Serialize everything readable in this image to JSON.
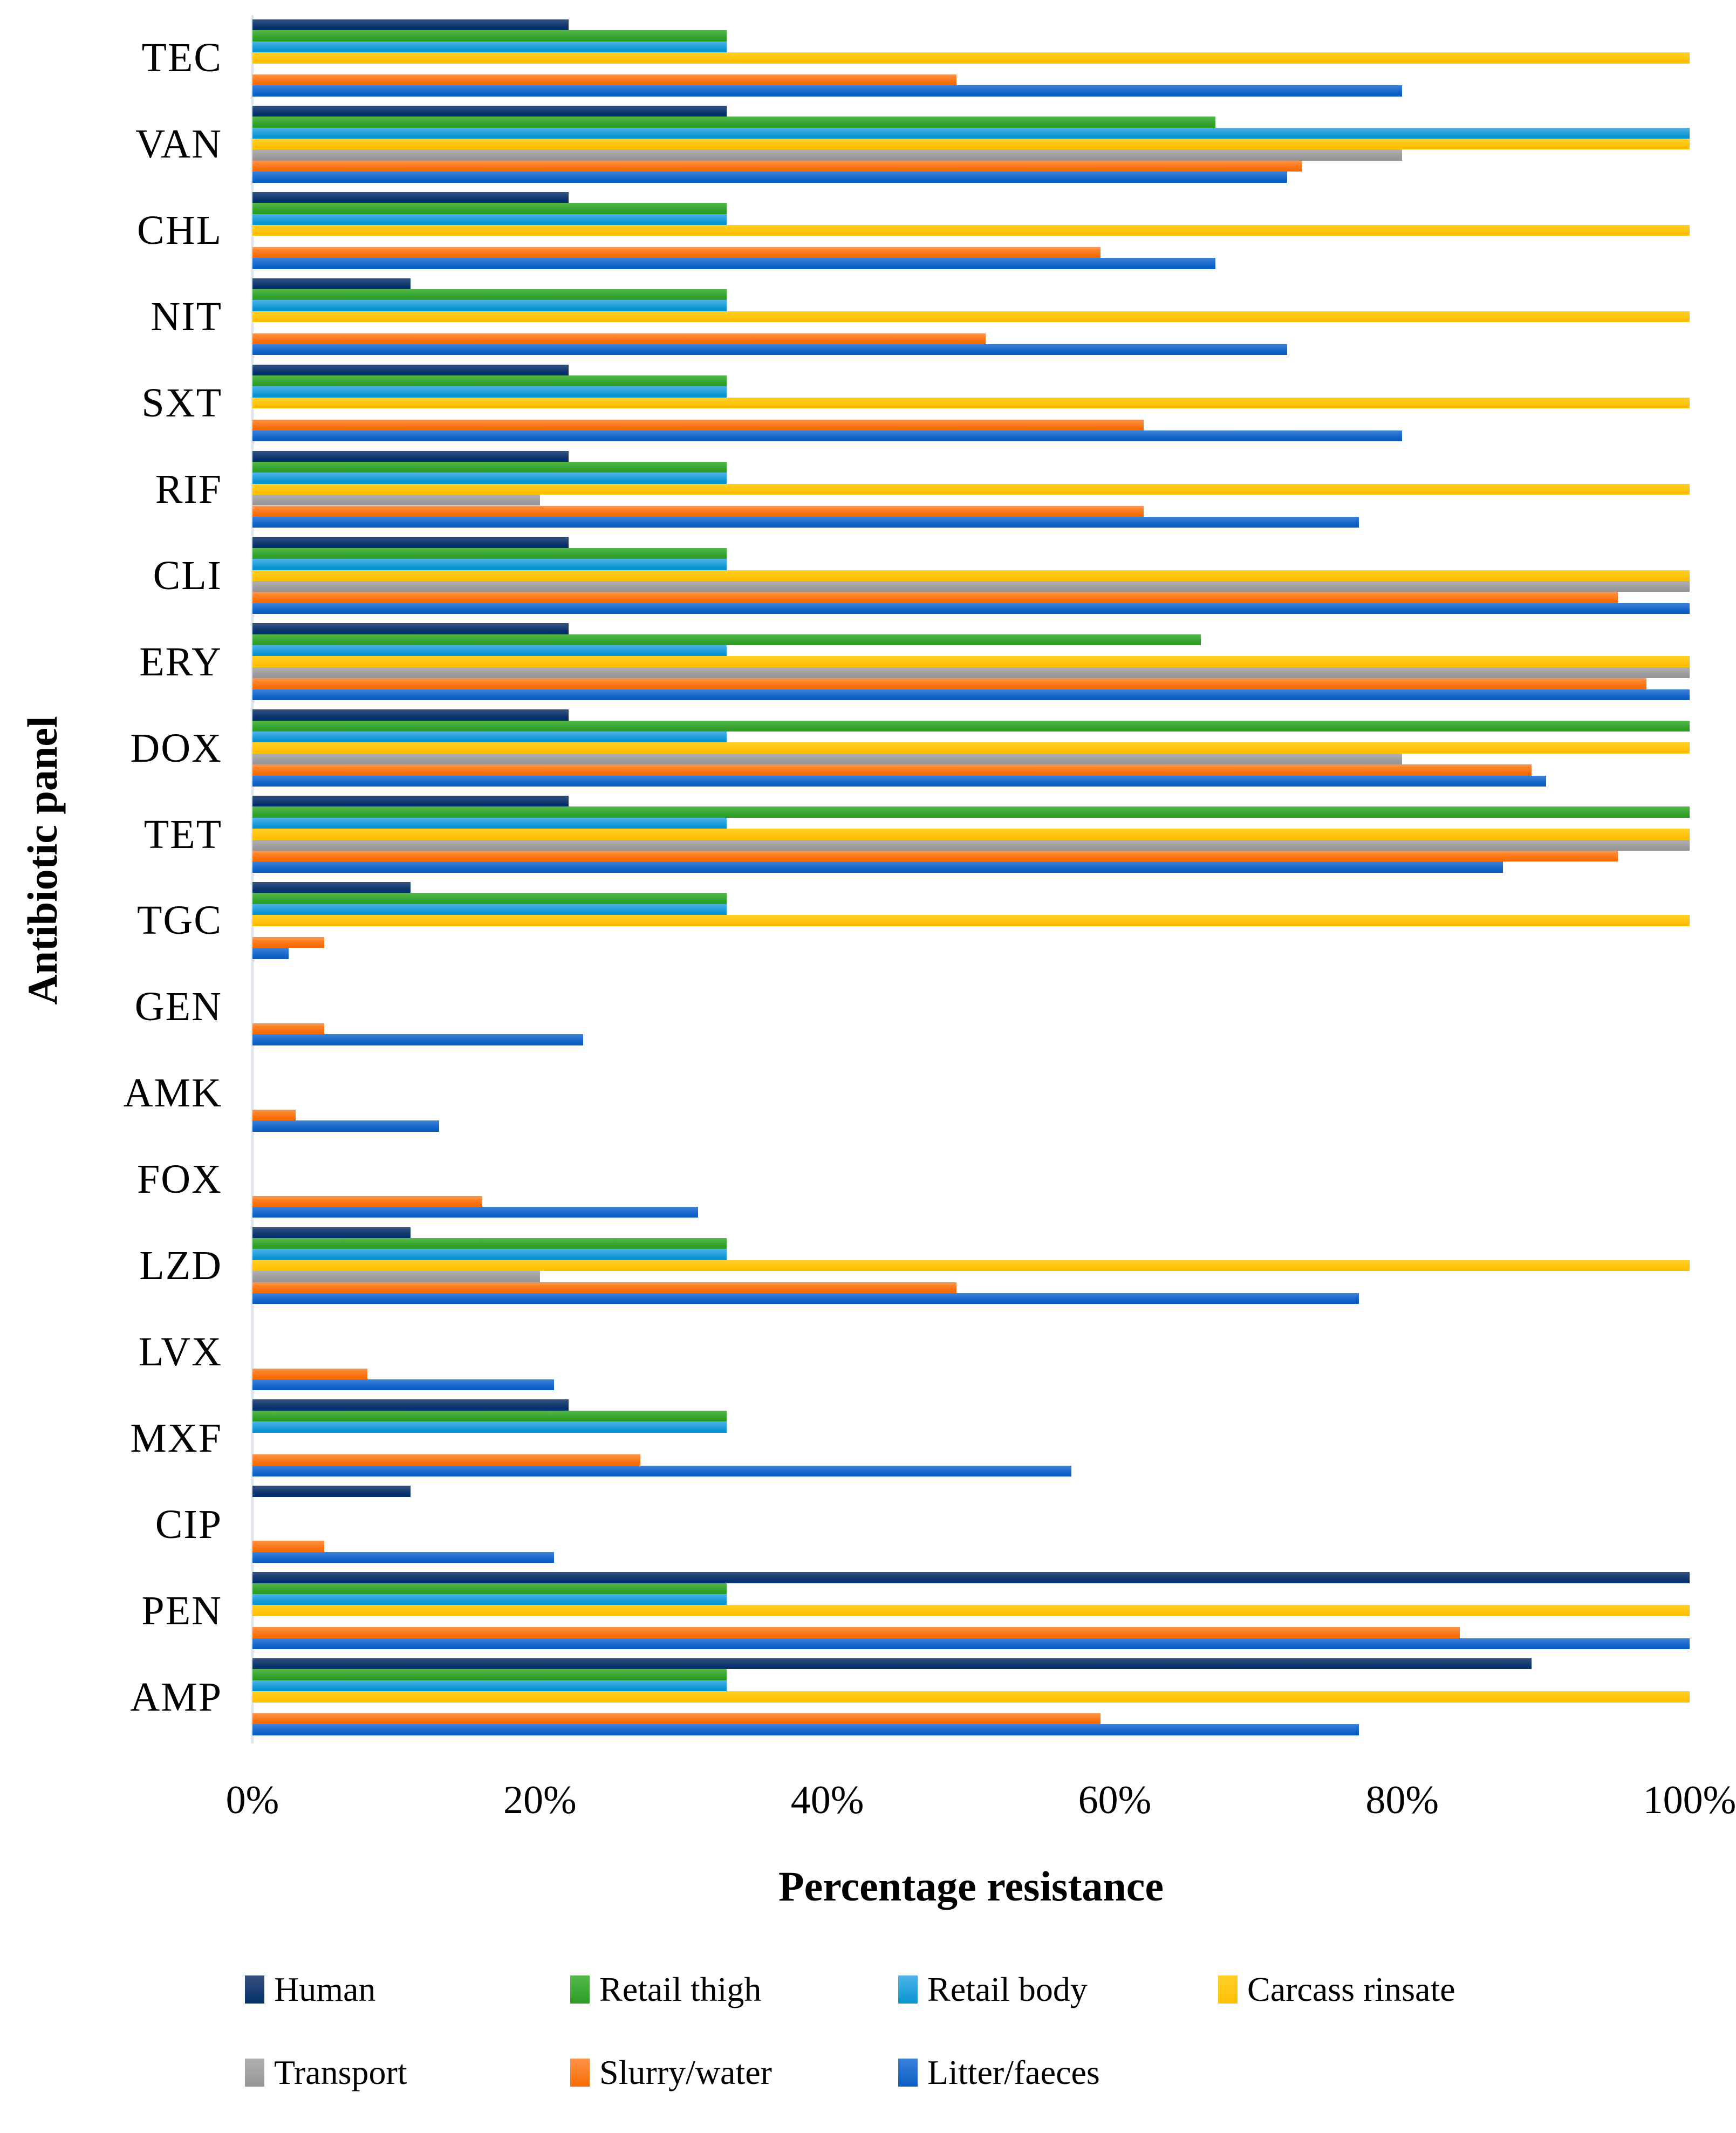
{
  "chart_data": {
    "type": "bar",
    "orientation": "horizontal",
    "title": "",
    "xlabel": "Percentage resistance",
    "ylabel": "Antibiotic panel",
    "x_ticks": [
      "0%",
      "20%",
      "40%",
      "60%",
      "80%",
      "100%"
    ],
    "xlim": [
      0,
      100
    ],
    "grid": false,
    "legend_position": "bottom",
    "categories": [
      "TEC",
      "VAN",
      "CHL",
      "NIT",
      "SXT",
      "RIF",
      "CLI",
      "ERY",
      "DOX",
      "TET",
      "TGC",
      "GEN",
      "AMK",
      "FOX",
      "LZD",
      "LVX",
      "MXF",
      "CIP",
      "PEN",
      "AMP"
    ],
    "series": [
      {
        "name": "Human",
        "color": "#03316a",
        "color_light": "#36507d",
        "values": [
          22,
          33,
          22,
          11,
          22,
          22,
          22,
          22,
          22,
          22,
          11,
          0,
          0,
          0,
          11,
          0,
          22,
          11,
          100,
          89
        ]
      },
      {
        "name": "Retail thigh",
        "color": "#2c9e25",
        "color_light": "#55b74b",
        "values": [
          33,
          67,
          33,
          33,
          33,
          33,
          33,
          66,
          100,
          100,
          33,
          0,
          0,
          0,
          33,
          0,
          33,
          0,
          33,
          33
        ]
      },
      {
        "name": "Retail body",
        "color": "#0894d2",
        "color_light": "#4db3e8",
        "values": [
          33,
          100,
          33,
          33,
          33,
          33,
          33,
          33,
          33,
          33,
          33,
          0,
          0,
          0,
          33,
          0,
          33,
          0,
          33,
          33
        ]
      },
      {
        "name": "Carcass rinsate",
        "color": "#fec000",
        "color_light": "#ffd02a",
        "values": [
          100,
          100,
          100,
          100,
          100,
          100,
          100,
          100,
          100,
          100,
          100,
          0,
          0,
          0,
          100,
          0,
          0,
          0,
          100,
          100
        ]
      },
      {
        "name": "Transport",
        "color": "#969696",
        "color_light": "#b0b0b0",
        "values": [
          0,
          80,
          0,
          0,
          0,
          20,
          100,
          100,
          80,
          100,
          0,
          0,
          0,
          0,
          20,
          0,
          0,
          0,
          0,
          0
        ]
      },
      {
        "name": "Slurry/water",
        "color": "#f96c03",
        "color_light": "#ff9349",
        "values": [
          49,
          73,
          59,
          51,
          62,
          62,
          95,
          97,
          89,
          95,
          5,
          5,
          3,
          16,
          49,
          8,
          27,
          5,
          84,
          59
        ]
      },
      {
        "name": "Litter/faeces",
        "color": "#0a5fc5",
        "color_light": "#3d81da",
        "values": [
          80,
          72,
          67,
          72,
          80,
          77,
          100,
          100,
          90,
          87,
          2.5,
          23,
          13,
          31,
          77,
          21,
          57,
          21,
          100,
          77
        ]
      }
    ]
  },
  "legend": {
    "rows": [
      [
        "Human",
        "Retail thigh",
        "Retail body",
        "Carcass rinsate"
      ],
      [
        "Transport",
        "Slurry/water",
        "Litter/faeces"
      ]
    ]
  }
}
